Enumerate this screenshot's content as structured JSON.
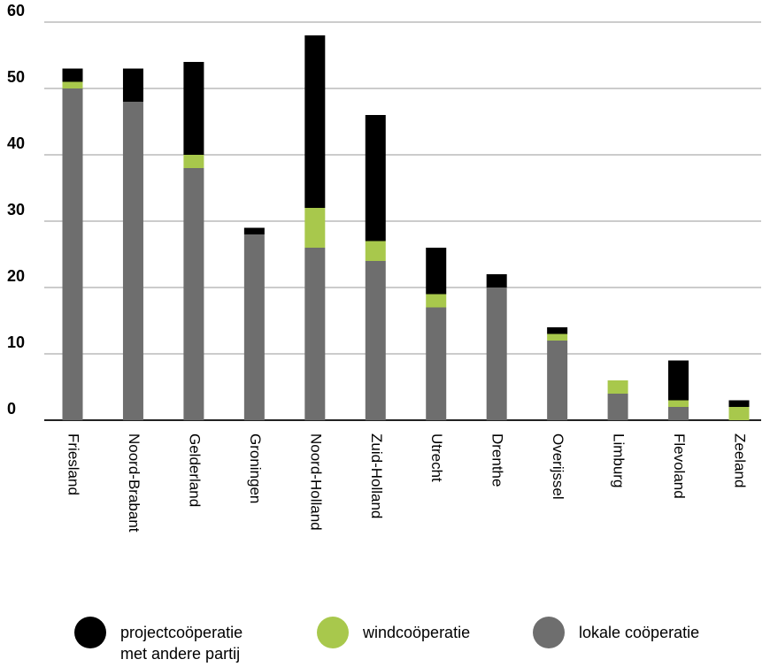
{
  "chart_data": {
    "type": "stacked_bar",
    "categories": [
      "Friesland",
      "Noord-Brabant",
      "Gelderland",
      "Groningen",
      "Noord-Holland",
      "Zuid-Holland",
      "Utrecht",
      "Drenthe",
      "Overijssel",
      "Limburg",
      "Flevoland",
      "Zeeland"
    ],
    "series": [
      {
        "name": "projectcoöperatie\nmet andere partij",
        "color": "#000000",
        "values": [
          2,
          5,
          14,
          1,
          26,
          19,
          7,
          2,
          1,
          0,
          6,
          1
        ]
      },
      {
        "name": "windcoöperatie",
        "color": "#a8c84c",
        "values": [
          1,
          0,
          2,
          0,
          6,
          3,
          2,
          0,
          1,
          2,
          1,
          2
        ]
      },
      {
        "name": "lokale coöperatie",
        "color": "#6e6e6e",
        "values": [
          50,
          48,
          38,
          28,
          26,
          24,
          17,
          20,
          12,
          4,
          2,
          0
        ]
      }
    ],
    "ylim": [
      0,
      60
    ],
    "yticks": [
      0,
      10,
      20,
      30,
      40,
      50,
      60
    ],
    "grid": true
  }
}
